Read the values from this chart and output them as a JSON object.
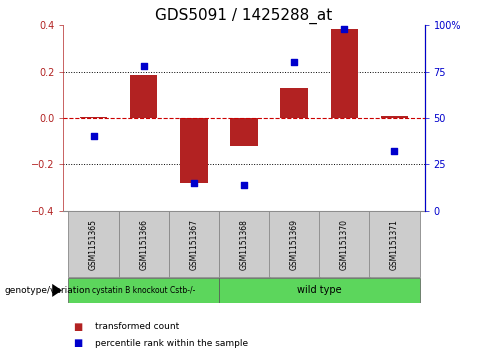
{
  "title": "GDS5091 / 1425288_at",
  "samples": [
    "GSM1151365",
    "GSM1151366",
    "GSM1151367",
    "GSM1151368",
    "GSM1151369",
    "GSM1151370",
    "GSM1151371"
  ],
  "red_bars": [
    0.003,
    0.185,
    -0.28,
    -0.12,
    0.13,
    0.385,
    0.008
  ],
  "blue_dots": [
    40,
    78,
    15,
    14,
    80,
    98,
    32
  ],
  "ylim_left": [
    -0.4,
    0.4
  ],
  "ylim_right": [
    0,
    100
  ],
  "yticks_left": [
    -0.4,
    -0.2,
    0.0,
    0.2,
    0.4
  ],
  "yticks_right": [
    0,
    25,
    50,
    75,
    100
  ],
  "ytick_labels_right": [
    "0",
    "25",
    "50",
    "75",
    "100%"
  ],
  "red_bar_color": "#b22222",
  "red_hline_color": "#cc0000",
  "blue_dot_color": "#0000cc",
  "group1_label": "cystatin B knockout Cstb-/-",
  "group2_label": "wild type",
  "group1_samples": 3,
  "group_color": "#5cd65c",
  "genotype_label": "genotype/variation",
  "legend_red": "transformed count",
  "legend_blue": "percentile rank within the sample",
  "bar_width": 0.55,
  "sample_box_color": "#cccccc",
  "sample_box_edge_color": "#888888",
  "title_fontsize": 11,
  "tick_fontsize": 7,
  "label_fontsize": 7
}
